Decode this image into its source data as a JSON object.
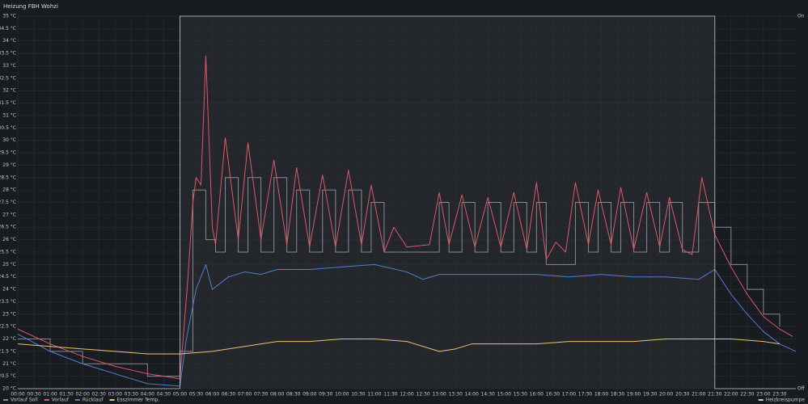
{
  "chart_data": {
    "type": "line",
    "title": "Heizung FBH Wohzi",
    "legend": "bottom",
    "grid": true,
    "xlim": [
      0,
      24
    ],
    "xticks": [
      {
        "value": 0,
        "label": "00:00"
      },
      {
        "value": 0.5,
        "label": "00:30"
      },
      {
        "value": 1,
        "label": "01:00"
      },
      {
        "value": 1.5,
        "label": "01:30"
      },
      {
        "value": 2,
        "label": "02:00"
      },
      {
        "value": 2.5,
        "label": "02:30"
      },
      {
        "value": 3,
        "label": "03:00"
      },
      {
        "value": 3.5,
        "label": "03:30"
      },
      {
        "value": 4,
        "label": "04:00"
      },
      {
        "value": 4.5,
        "label": "04:30"
      },
      {
        "value": 5,
        "label": "05:00"
      },
      {
        "value": 5.5,
        "label": "05:30"
      },
      {
        "value": 6,
        "label": "06:00"
      },
      {
        "value": 6.5,
        "label": "06:30"
      },
      {
        "value": 7,
        "label": "07:00"
      },
      {
        "value": 7.5,
        "label": "07:30"
      },
      {
        "value": 8,
        "label": "08:00"
      },
      {
        "value": 8.5,
        "label": "08:30"
      },
      {
        "value": 9,
        "label": "09:00"
      },
      {
        "value": 9.5,
        "label": "09:30"
      },
      {
        "value": 10,
        "label": "10:00"
      },
      {
        "value": 10.5,
        "label": "10:30"
      },
      {
        "value": 11,
        "label": "11:00"
      },
      {
        "value": 11.5,
        "label": "11:30"
      },
      {
        "value": 12,
        "label": "12:00"
      },
      {
        "value": 12.5,
        "label": "12:30"
      },
      {
        "value": 13,
        "label": "13:00"
      },
      {
        "value": 13.5,
        "label": "13:30"
      },
      {
        "value": 14,
        "label": "14:00"
      },
      {
        "value": 14.5,
        "label": "14:30"
      },
      {
        "value": 15,
        "label": "15:00"
      },
      {
        "value": 15.5,
        "label": "15:30"
      },
      {
        "value": 16,
        "label": "16:00"
      },
      {
        "value": 16.5,
        "label": "16:30"
      },
      {
        "value": 17,
        "label": "17:00"
      },
      {
        "value": 17.5,
        "label": "17:30"
      },
      {
        "value": 18,
        "label": "18:00"
      },
      {
        "value": 18.5,
        "label": "18:30"
      },
      {
        "value": 19,
        "label": "19:00"
      },
      {
        "value": 19.5,
        "label": "19:30"
      },
      {
        "value": 20,
        "label": "20:00"
      },
      {
        "value": 20.5,
        "label": "20:30"
      },
      {
        "value": 21,
        "label": "21:00"
      },
      {
        "value": 21.5,
        "label": "21:30"
      },
      {
        "value": 22,
        "label": "22:00"
      },
      {
        "value": 22.5,
        "label": "22:30"
      },
      {
        "value": 23,
        "label": "23:00"
      },
      {
        "value": 23.5,
        "label": "23:30"
      }
    ],
    "ylim": [
      20,
      35
    ],
    "yticks": [
      {
        "value": 20,
        "label": "20 °C"
      },
      {
        "value": 20.5,
        "label": "20.5 °C"
      },
      {
        "value": 21,
        "label": "21 °C"
      },
      {
        "value": 21.5,
        "label": "21.5 °C"
      },
      {
        "value": 22,
        "label": "22 °C"
      },
      {
        "value": 22.5,
        "label": "22.5 °C"
      },
      {
        "value": 23,
        "label": "23 °C"
      },
      {
        "value": 23.5,
        "label": "23.5 °C"
      },
      {
        "value": 24,
        "label": "24 °C"
      },
      {
        "value": 24.5,
        "label": "24.5 °C"
      },
      {
        "value": 25,
        "label": "25 °C"
      },
      {
        "value": 25.5,
        "label": "25.5 °C"
      },
      {
        "value": 26,
        "label": "26 °C"
      },
      {
        "value": 26.5,
        "label": "26.5 °C"
      },
      {
        "value": 27,
        "label": "27 °C"
      },
      {
        "value": 27.5,
        "label": "27.5 °C"
      },
      {
        "value": 28,
        "label": "28 °C"
      },
      {
        "value": 28.5,
        "label": "28.5 °C"
      },
      {
        "value": 29,
        "label": "29 °C"
      },
      {
        "value": 29.5,
        "label": "29.5 °C"
      },
      {
        "value": 30,
        "label": "30 °C"
      },
      {
        "value": 30.5,
        "label": "30.5 °C"
      },
      {
        "value": 31,
        "label": "31 °C"
      },
      {
        "value": 31.5,
        "label": "31.5 °C"
      },
      {
        "value": 32,
        "label": "32 °C"
      },
      {
        "value": 32.5,
        "label": "32.5 °C"
      },
      {
        "value": 33,
        "label": "33 °C"
      },
      {
        "value": 33.5,
        "label": "33.5 °C"
      },
      {
        "value": 34,
        "label": "34 °C"
      },
      {
        "value": 34.5,
        "label": "34.5 °C"
      },
      {
        "value": 35,
        "label": "35 °C"
      }
    ],
    "y2lim": [
      0,
      1
    ],
    "y2ticks": [
      {
        "value": 0,
        "label": "Off"
      },
      {
        "value": 1,
        "label": "On"
      }
    ],
    "series": [
      {
        "name": "Vorlauf Soll",
        "color": "#8a8a8e",
        "step": true,
        "x": [
          0,
          1,
          2,
          3,
          4,
          5,
          5.4,
          5.8,
          6.1,
          6.4,
          6.8,
          7.1,
          7.5,
          7.9,
          8.3,
          8.6,
          9.0,
          9.4,
          9.8,
          10.2,
          10.6,
          10.9,
          11.3,
          12.0,
          12.8,
          13.0,
          13.3,
          13.7,
          14.1,
          14.5,
          14.9,
          15.3,
          15.7,
          16.0,
          16.3,
          17.0,
          17.2,
          17.6,
          17.9,
          18.3,
          18.6,
          19.0,
          19.4,
          19.8,
          20.1,
          20.5,
          21.0,
          21.5,
          22,
          22.5,
          23,
          23.5
        ],
        "values": [
          22,
          21.5,
          21,
          21,
          20.5,
          21.5,
          28,
          26,
          25.5,
          28.5,
          25.5,
          28.5,
          25.5,
          28.5,
          25.5,
          28,
          25.5,
          28,
          25.5,
          28,
          25.5,
          27.5,
          25.5,
          25.5,
          25.5,
          27.5,
          25.5,
          27.5,
          25.5,
          27.5,
          25.5,
          27.5,
          25.5,
          27.5,
          25,
          25,
          27.5,
          25.5,
          27.5,
          25.5,
          27.5,
          25.5,
          27.5,
          25.5,
          27.5,
          25.5,
          27.5,
          26.5,
          25,
          24,
          23,
          22.5
        ]
      },
      {
        "name": "Vorlauf",
        "color": "#e0566a",
        "x": [
          0,
          1,
          2,
          3,
          4,
          4.5,
          5,
          5.1,
          5.25,
          5.4,
          5.5,
          5.65,
          5.8,
          6.0,
          6.1,
          6.4,
          6.8,
          7.1,
          7.5,
          7.9,
          8.3,
          8.6,
          9.0,
          9.4,
          9.8,
          10.2,
          10.6,
          10.9,
          11.3,
          11.6,
          12.0,
          12.7,
          13.0,
          13.3,
          13.7,
          14.1,
          14.5,
          14.9,
          15.3,
          15.7,
          16.0,
          16.3,
          16.6,
          16.9,
          17.2,
          17.6,
          17.9,
          18.3,
          18.6,
          19.0,
          19.4,
          19.8,
          20.1,
          20.5,
          20.8,
          21.1,
          21.5,
          22,
          22.5,
          23,
          23.5,
          23.9
        ],
        "values": [
          22.4,
          21.8,
          21.3,
          20.9,
          20.6,
          20.5,
          20.4,
          22,
          24.5,
          27.5,
          28.5,
          28.2,
          33.4,
          26.5,
          25.8,
          30.1,
          26,
          29.9,
          26,
          29.2,
          25.8,
          28.9,
          25.7,
          28.6,
          25.7,
          28.8,
          25.8,
          28.2,
          25.5,
          26.5,
          25.7,
          25.8,
          27.9,
          25.8,
          27.8,
          25.7,
          27.7,
          25.7,
          27.9,
          25.6,
          28.3,
          25.2,
          25.9,
          25.5,
          28.3,
          25.8,
          28.0,
          25.8,
          28.1,
          25.6,
          27.9,
          25.7,
          27.7,
          25.6,
          25.4,
          28.5,
          26.2,
          24.9,
          23.8,
          22.9,
          22.4,
          22.1
        ]
      },
      {
        "name": "Rücklauf",
        "color": "#4f7fd1",
        "x": [
          0,
          1,
          2,
          3,
          4,
          5,
          5.2,
          5.5,
          5.8,
          6,
          6.5,
          7,
          7.5,
          8,
          9,
          10,
          11,
          12,
          12.5,
          13,
          14,
          15,
          16,
          17,
          18,
          19,
          20,
          21,
          21.5,
          22,
          22.5,
          23,
          23.5,
          24
        ],
        "values": [
          22.2,
          21.5,
          21,
          20.6,
          20.2,
          20.1,
          22,
          24,
          25,
          24,
          24.5,
          24.7,
          24.6,
          24.8,
          24.8,
          24.9,
          25,
          24.7,
          24.4,
          24.6,
          24.6,
          24.6,
          24.6,
          24.5,
          24.6,
          24.5,
          24.5,
          24.4,
          24.8,
          23.8,
          23.0,
          22.3,
          21.8,
          21.5
        ]
      },
      {
        "name": "Esszimmer Temp.",
        "color": "#e8c477",
        "x": [
          0,
          1,
          2,
          3,
          4,
          5,
          6,
          7,
          8,
          9,
          10,
          11,
          12,
          13,
          13.5,
          14,
          15,
          16,
          17,
          18,
          19,
          20,
          21,
          22,
          23,
          23.5
        ],
        "values": [
          21.8,
          21.7,
          21.6,
          21.5,
          21.4,
          21.4,
          21.5,
          21.7,
          21.9,
          21.9,
          22.0,
          22.0,
          21.9,
          21.5,
          21.6,
          21.8,
          21.8,
          21.8,
          21.9,
          21.9,
          21.9,
          22.0,
          22.0,
          22.0,
          21.9,
          21.8
        ]
      },
      {
        "name": "Heizkreispumpe",
        "color": "#c7c9cc",
        "axis": "y2",
        "step": true,
        "x": [
          0,
          5,
          21.5,
          24
        ],
        "values": [
          0,
          1,
          0,
          0
        ]
      }
    ]
  }
}
